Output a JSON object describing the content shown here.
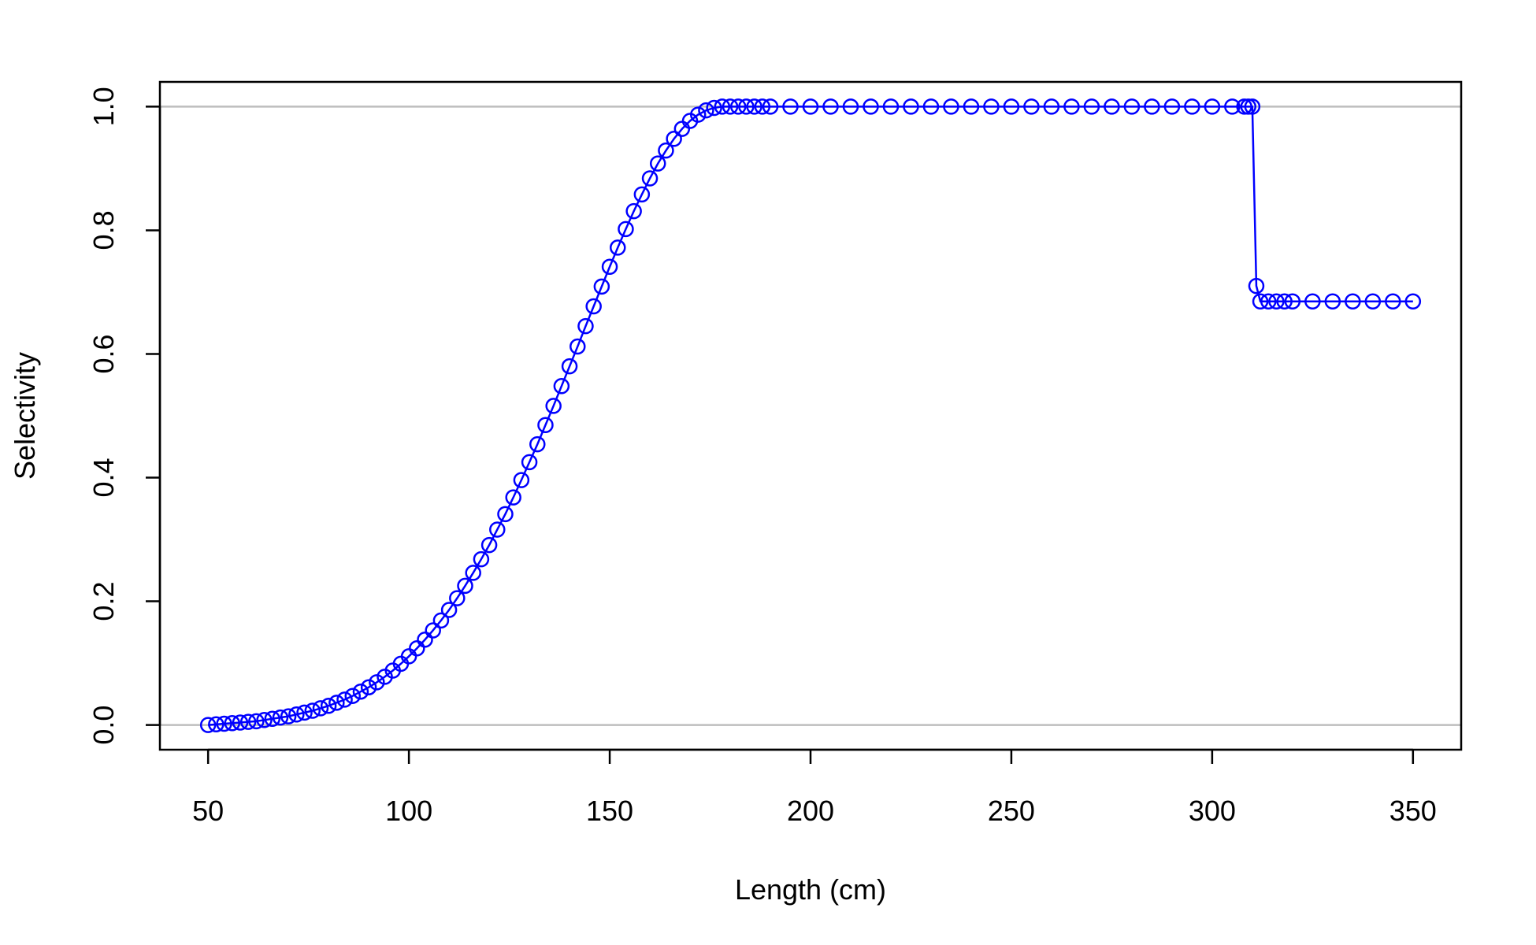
{
  "colors": {
    "series": "#0000ff",
    "reference_lines": "#bebebe",
    "axis": "#000000",
    "background": "#ffffff"
  },
  "chart_data": {
    "type": "line",
    "title": "",
    "xlabel": "Length (cm)",
    "ylabel": "Selectivity",
    "xlim": [
      38,
      362
    ],
    "ylim": [
      -0.04,
      1.04
    ],
    "x_ticks": [
      50,
      100,
      150,
      200,
      250,
      300,
      350
    ],
    "x_tick_labels": [
      "50",
      "100",
      "150",
      "200",
      "250",
      "300",
      "350"
    ],
    "y_ticks": [
      0,
      0.2,
      0.4,
      0.6,
      0.8,
      1
    ],
    "y_tick_labels": [
      "0.0",
      "0.2",
      "0.4",
      "0.6",
      "0.8",
      "1.0"
    ],
    "reference_lines_y": [
      0,
      1
    ],
    "grid": false,
    "legend": "none",
    "marker": "open circle",
    "line_style": "solid line with open circle markers",
    "series": [
      {
        "x": [
          50,
          52,
          54,
          56,
          58,
          60,
          62,
          64,
          66,
          68,
          70,
          72,
          74,
          76,
          78,
          80,
          82,
          84,
          86,
          88,
          90,
          92,
          94,
          96,
          98,
          100,
          102,
          104,
          106,
          108,
          110,
          112,
          114,
          116,
          118,
          120,
          122,
          124,
          126,
          128,
          130,
          132,
          134,
          136,
          138,
          140,
          142,
          144,
          146,
          148,
          150,
          152,
          154,
          156,
          158,
          160,
          162,
          164,
          166,
          168,
          170,
          172,
          174,
          176,
          178,
          180,
          182,
          184,
          186,
          188,
          190,
          195,
          200,
          205,
          210,
          215,
          220,
          225,
          230,
          235,
          240,
          245,
          250,
          255,
          260,
          265,
          270,
          275,
          280,
          285,
          290,
          295,
          300,
          305,
          308,
          309,
          310,
          311,
          312,
          314,
          316,
          318,
          320,
          325,
          330,
          335,
          340,
          345,
          350
        ],
        "y": [
          0.0,
          0.001,
          0.002,
          0.003,
          0.004,
          0.005,
          0.006,
          0.008,
          0.01,
          0.012,
          0.014,
          0.017,
          0.02,
          0.023,
          0.027,
          0.031,
          0.036,
          0.041,
          0.047,
          0.054,
          0.061,
          0.069,
          0.078,
          0.088,
          0.099,
          0.111,
          0.124,
          0.138,
          0.153,
          0.169,
          0.186,
          0.205,
          0.225,
          0.246,
          0.268,
          0.291,
          0.316,
          0.341,
          0.368,
          0.396,
          0.425,
          0.454,
          0.485,
          0.516,
          0.548,
          0.58,
          0.612,
          0.645,
          0.677,
          0.709,
          0.741,
          0.772,
          0.802,
          0.831,
          0.858,
          0.884,
          0.908,
          0.929,
          0.948,
          0.964,
          0.977,
          0.987,
          0.994,
          0.998,
          1.0,
          1.0,
          1.0,
          1.0,
          1.0,
          1.0,
          1.0,
          1.0,
          1.0,
          1.0,
          1.0,
          1.0,
          1.0,
          1.0,
          1.0,
          1.0,
          1.0,
          1.0,
          1.0,
          1.0,
          1.0,
          1.0,
          1.0,
          1.0,
          1.0,
          1.0,
          1.0,
          1.0,
          1.0,
          1.0,
          1.0,
          1.0,
          1.0,
          0.71,
          0.685,
          0.685,
          0.685,
          0.685,
          0.685,
          0.685,
          0.685,
          0.685,
          0.685,
          0.685,
          0.685
        ]
      }
    ]
  }
}
